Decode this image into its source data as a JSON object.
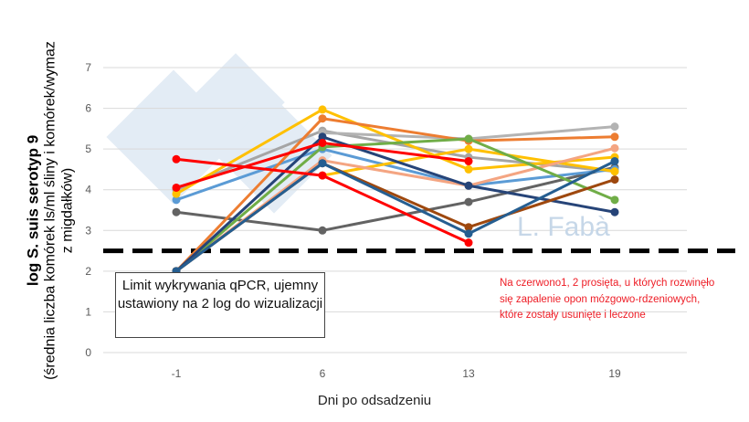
{
  "chart_data": {
    "type": "line",
    "categories": [
      "-1",
      "6",
      "13",
      "19"
    ],
    "ylim": [
      0,
      7
    ],
    "yticks": [
      "0",
      "1",
      "2",
      "3",
      "4",
      "5",
      "6",
      "7"
    ],
    "grid": true,
    "ylabel_main": "log S. suis serotyp 9",
    "ylabel_sub": "(średnia liczba komórek ls/ml śliny i komórek/wymaz z migdałków)",
    "xlabel": "Dni po odsadzeniu",
    "threshold": {
      "value": 2.5,
      "style": "dashed",
      "color": "#000000"
    },
    "series": [
      {
        "color": "#a5a5a5",
        "values": [
          4.0,
          5.45,
          4.8,
          4.45
        ]
      },
      {
        "color": "#b3b3b3",
        "values": [
          null,
          5.4,
          5.25,
          5.55
        ]
      },
      {
        "color": "#636363",
        "values": [
          3.45,
          3.0,
          3.7,
          4.55
        ]
      },
      {
        "color": "#5b9bd5",
        "values": [
          3.75,
          5.0,
          4.1,
          4.5
        ]
      },
      {
        "color": "#ffc000",
        "values": [
          3.9,
          5.97,
          4.5,
          4.8
        ]
      },
      {
        "color": "#ffc000",
        "values": [
          null,
          4.35,
          5.0,
          4.45
        ]
      },
      {
        "color": "#ed7d31",
        "values": [
          2.0,
          5.75,
          5.2,
          5.3
        ]
      },
      {
        "color": "#f4a582",
        "values": [
          2.0,
          4.72,
          4.1,
          5.02
        ]
      },
      {
        "color": "#70ad47",
        "values": [
          2.0,
          5.05,
          5.25,
          3.75
        ]
      },
      {
        "color": "#264478",
        "values": [
          2.0,
          5.3,
          4.1,
          3.45
        ]
      },
      {
        "color": "#9e480e",
        "values": [
          2.0,
          4.65,
          3.08,
          4.25
        ]
      },
      {
        "color": "#255e91",
        "values": [
          2.0,
          4.65,
          2.92,
          4.7
        ]
      },
      {
        "color": "#ff0000",
        "values": [
          4.75,
          4.35,
          2.7,
          null
        ]
      },
      {
        "color": "#ff0000",
        "values": [
          4.05,
          5.15,
          4.7,
          null
        ]
      }
    ],
    "annotations": {
      "box": "Limit wykrywania qPCR, ujemny ustawiony na 2 log do wizualizacji",
      "red_note": "Na czerwono1, 2 prosięta, u których rozwinęło się zapalenie opon mózgowo-rdzeniowych, które zostały usunięte i leczone",
      "watermark": "L. Fabà"
    }
  }
}
